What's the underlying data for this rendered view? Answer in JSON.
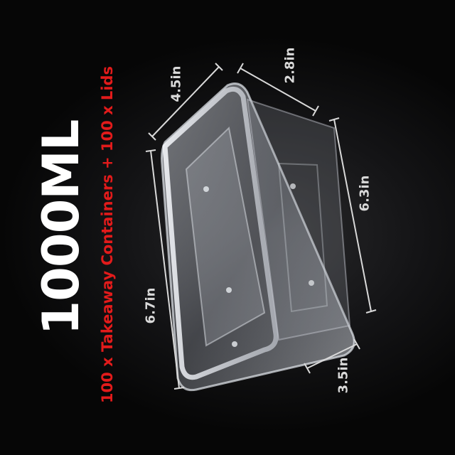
{
  "product": {
    "capacity": "1000ML",
    "subtitle": "100 x Takeaway Containers + 100 x Lids"
  },
  "dimensions": {
    "top_length": "4.5in",
    "top_width": "2.8in",
    "left_side": "6.7in",
    "right_side": "6.3in",
    "bottom_width": "3.5in"
  },
  "colors": {
    "background": "#000000",
    "title": "#ffffff",
    "subtitle": "#e21b1b",
    "dimension_text": "#d9d9d9"
  }
}
